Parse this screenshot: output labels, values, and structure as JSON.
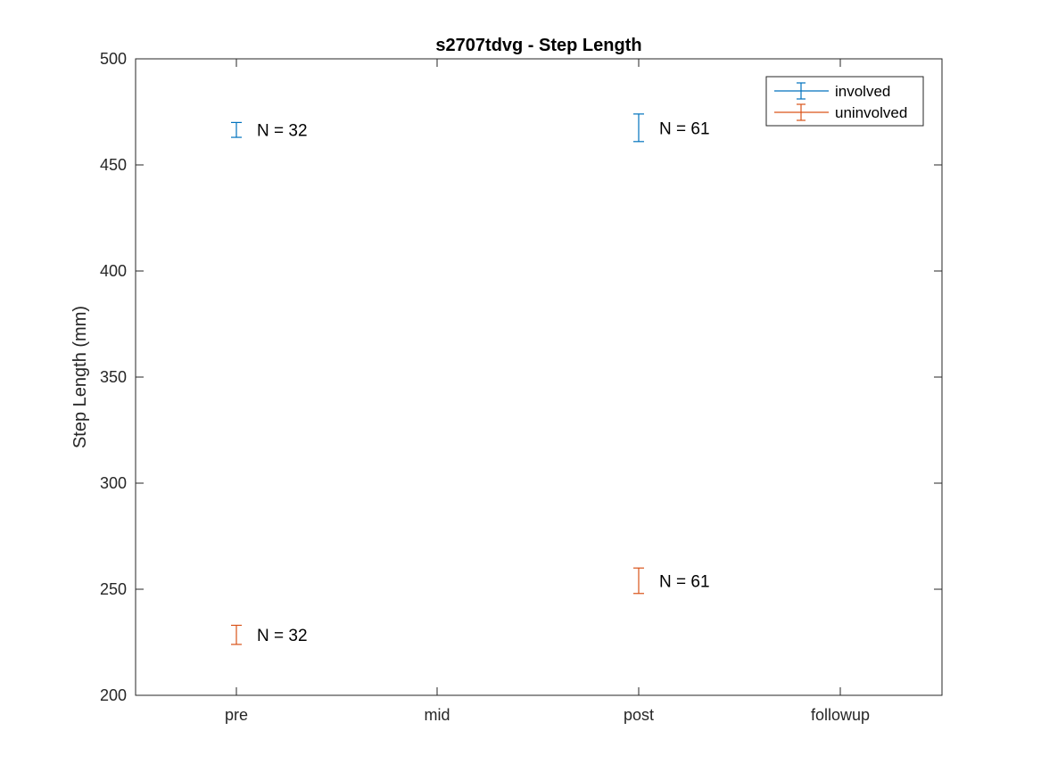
{
  "chart_data": {
    "type": "errorbar",
    "title": "s2707tdvg - Step Length",
    "xlabel": "",
    "ylabel": "Step Length (mm)",
    "categories": [
      "pre",
      "mid",
      "post",
      "followup"
    ],
    "ylim": [
      200,
      500
    ],
    "yticks": [
      200,
      250,
      300,
      350,
      400,
      450,
      500
    ],
    "ytick_labels": [
      "200",
      "250",
      "300",
      "350",
      "400",
      "450",
      "500"
    ],
    "legend_position": "top-right",
    "series": [
      {
        "name": "involved",
        "color": "#0072BD",
        "points": [
          {
            "category": "pre",
            "mean": 466.5,
            "low": 463,
            "high": 470,
            "n_label": "N = 32"
          },
          {
            "category": "post",
            "mean": 467.5,
            "low": 461,
            "high": 474,
            "n_label": "N = 61"
          }
        ]
      },
      {
        "name": "uninvolved",
        "color": "#D95319",
        "points": [
          {
            "category": "pre",
            "mean": 228.5,
            "low": 224,
            "high": 233,
            "n_label": "N = 32"
          },
          {
            "category": "post",
            "mean": 254,
            "low": 248,
            "high": 260,
            "n_label": "N = 61"
          }
        ]
      }
    ]
  }
}
